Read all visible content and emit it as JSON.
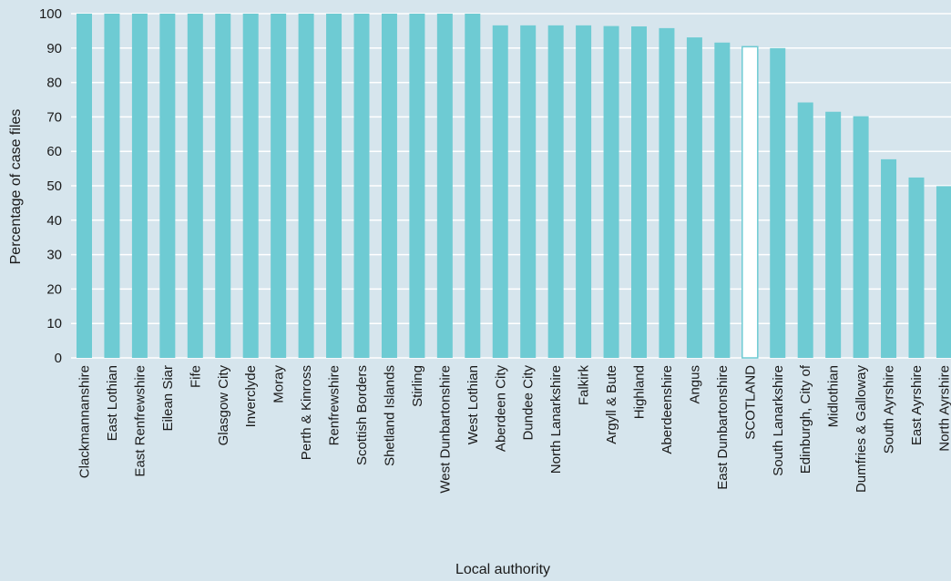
{
  "chart_data": {
    "type": "bar",
    "title": "",
    "xlabel": "Local authority",
    "ylabel": "Percentage of case files",
    "ylim": [
      0,
      100
    ],
    "yticks": [
      0,
      10,
      20,
      30,
      40,
      50,
      60,
      70,
      80,
      90,
      100
    ],
    "grid": true,
    "categories": [
      "Clackmannanshire",
      "East Lothian",
      "East Renfrewshire",
      "Eilean Siar",
      "Fife",
      "Glasgow City",
      "Inverclyde",
      "Moray",
      "Perth & Kinross",
      "Renfrewshire",
      "Scottish Borders",
      "Shetland Islands",
      "Stirling",
      "West Dunbartonshire",
      "West Lothian",
      "Aberdeen City",
      "Dundee City",
      "North Lanarkshire",
      "Falkirk",
      "Argyll & Bute",
      "Highland",
      "Aberdeenshire",
      "Angus",
      "East Dunbartonshire",
      "SCOTLAND",
      "South Lanarkshire",
      "Edinburgh, City of",
      "Midlothian",
      "Dumfries & Galloway",
      "South Ayrshire",
      "East Ayrshire",
      "North Ayrshire"
    ],
    "values": [
      100,
      100,
      100,
      100,
      100,
      100,
      100,
      100,
      100,
      100,
      100,
      100,
      100,
      100,
      100,
      96.6,
      96.6,
      96.6,
      96.6,
      96.4,
      96.3,
      95.8,
      93.1,
      91.6,
      90.4,
      90.0,
      74.2,
      71.5,
      70.2,
      57.7,
      52.4,
      49.9
    ],
    "highlight_category": "SCOTLAND",
    "colors": {
      "bar": "#6ecbd3",
      "highlight_fill": "#ffffff",
      "highlight_stroke": "#6ecbd3",
      "grid": "#ffffff",
      "background": "#d6e5ed"
    }
  }
}
